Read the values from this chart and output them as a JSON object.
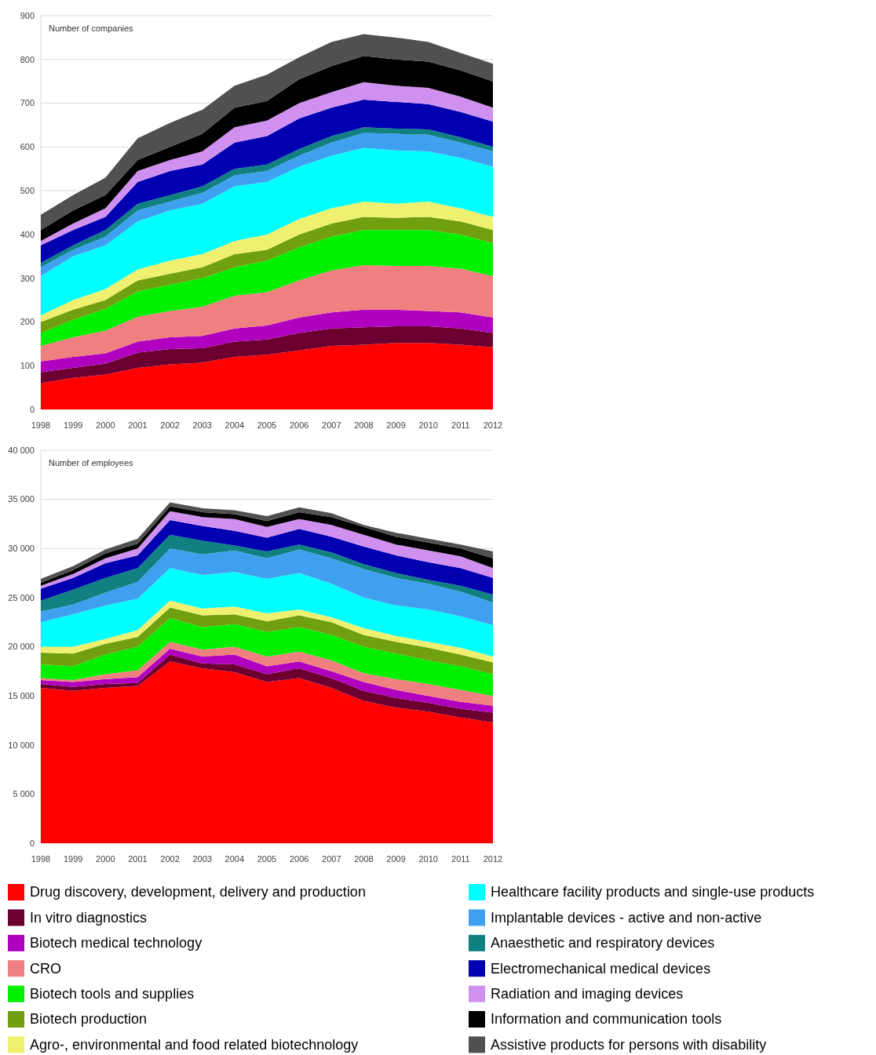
{
  "chart_data": [
    {
      "type": "area",
      "title": "Number of companies",
      "stacked": true,
      "grid": "y",
      "legend": "bottom",
      "categories": [
        "1998",
        "1999",
        "2000",
        "2001",
        "2002",
        "2003",
        "2004",
        "2005",
        "2006",
        "2007",
        "2008",
        "2009",
        "2010",
        "2011",
        "2012"
      ],
      "ylim": [
        0,
        900
      ],
      "yticks": [
        0,
        100,
        200,
        300,
        400,
        500,
        600,
        700,
        800,
        900
      ],
      "series": [
        {
          "name": "Drug discovery, development, delivery and production",
          "color": "#ff0000",
          "values": [
            60,
            72,
            80,
            95,
            103,
            107,
            120,
            125,
            135,
            145,
            148,
            152,
            152,
            148,
            142
          ]
        },
        {
          "name": "In vitro diagnostics",
          "color": "#6b0030",
          "values": [
            25,
            23,
            25,
            35,
            35,
            33,
            35,
            35,
            40,
            40,
            40,
            38,
            38,
            37,
            33
          ]
        },
        {
          "name": "Biotech medical technology",
          "color": "#b000c0",
          "values": [
            25,
            25,
            23,
            25,
            27,
            28,
            30,
            32,
            35,
            37,
            40,
            38,
            35,
            37,
            35
          ]
        },
        {
          "name": "CRO",
          "color": "#f08080",
          "values": [
            35,
            45,
            52,
            57,
            60,
            67,
            75,
            76,
            85,
            96,
            102,
            100,
            103,
            100,
            95
          ]
        },
        {
          "name": "Biotech tools and supplies",
          "color": "#00f000",
          "values": [
            30,
            40,
            50,
            58,
            60,
            65,
            65,
            72,
            75,
            77,
            80,
            82,
            82,
            78,
            75
          ]
        },
        {
          "name": "Biotech production",
          "color": "#70a010",
          "values": [
            25,
            23,
            20,
            25,
            25,
            25,
            30,
            25,
            30,
            30,
            30,
            28,
            30,
            30,
            30
          ]
        },
        {
          "name": "Agro-, environmental and food related biotechnology",
          "color": "#f0f070",
          "values": [
            15,
            22,
            25,
            25,
            30,
            30,
            30,
            35,
            35,
            35,
            35,
            32,
            35,
            30,
            30
          ]
        },
        {
          "name": "Healthcare facility products and single-use products",
          "color": "#00ffff",
          "values": [
            90,
            100,
            100,
            110,
            115,
            115,
            125,
            120,
            120,
            120,
            123,
            122,
            115,
            115,
            115
          ]
        },
        {
          "name": "Implantable devices - active and non-active",
          "color": "#40a0f0",
          "values": [
            20,
            15,
            20,
            25,
            20,
            25,
            25,
            25,
            25,
            30,
            34,
            38,
            38,
            35,
            35
          ]
        },
        {
          "name": "Anaesthetic and respiratory devices",
          "color": "#108080",
          "values": [
            10,
            10,
            15,
            15,
            15,
            15,
            15,
            15,
            15,
            15,
            13,
            12,
            12,
            12,
            10
          ]
        },
        {
          "name": "Electromechanical medical devices",
          "color": "#0000b0",
          "values": [
            40,
            35,
            30,
            50,
            55,
            50,
            60,
            65,
            70,
            65,
            63,
            61,
            58,
            58,
            58
          ]
        },
        {
          "name": "Radiation and imaging devices",
          "color": "#d090f0",
          "values": [
            10,
            15,
            20,
            25,
            25,
            30,
            35,
            35,
            35,
            35,
            40,
            37,
            37,
            35,
            32
          ]
        },
        {
          "name": "Information and communication tools",
          "color": "#000000",
          "values": [
            25,
            30,
            30,
            25,
            30,
            40,
            45,
            45,
            55,
            60,
            60,
            60,
            60,
            60,
            60
          ]
        },
        {
          "name": "Assistive products for persons with disability",
          "color": "#505050",
          "values": [
            35,
            35,
            40,
            50,
            55,
            55,
            50,
            60,
            50,
            55,
            50,
            50,
            45,
            40,
            40
          ]
        }
      ]
    },
    {
      "type": "area",
      "title": "Number of employees",
      "stacked": true,
      "grid": "y",
      "legend": "bottom",
      "categories": [
        "1998",
        "1999",
        "2000",
        "2001",
        "2002",
        "2003",
        "2004",
        "2005",
        "2006",
        "2007",
        "2008",
        "2009",
        "2010",
        "2011",
        "2012"
      ],
      "ylim": [
        0,
        40000
      ],
      "yticks": [
        0,
        {
          "value": 5000,
          "label": "5 000"
        },
        {
          "value": 10000,
          "label": "10 000"
        },
        {
          "value": 15000,
          "label": "15 000"
        },
        {
          "value": 20000,
          "label": "20 000"
        },
        {
          "value": 25000,
          "label": "25 000"
        },
        {
          "value": 30000,
          "label": "30 000"
        },
        {
          "value": 35000,
          "label": "35 000"
        },
        {
          "value": 40000,
          "label": "40 000"
        }
      ],
      "series": [
        {
          "color": "#ff0000",
          "values": [
            15800,
            15500,
            15800,
            16000,
            18500,
            17800,
            17400,
            16400,
            16800,
            15800,
            14500,
            13800,
            13400,
            12800,
            12300
          ]
        },
        {
          "color": "#6b0030",
          "values": [
            400,
            400,
            400,
            300,
            700,
            500,
            800,
            800,
            1000,
            1000,
            1000,
            1000,
            900,
            900,
            1000
          ]
        },
        {
          "color": "#b000c0",
          "values": [
            400,
            500,
            500,
            600,
            600,
            700,
            1000,
            800,
            700,
            700,
            900,
            800,
            700,
            700,
            700
          ]
        },
        {
          "color": "#f08080",
          "values": [
            200,
            200,
            500,
            700,
            700,
            700,
            800,
            1000,
            1000,
            1100,
            900,
            1100,
            1200,
            1200,
            1000
          ]
        },
        {
          "color": "#00f000",
          "values": [
            1400,
            1400,
            2000,
            2400,
            2400,
            2300,
            2300,
            2500,
            2500,
            2600,
            2700,
            2600,
            2400,
            2400,
            2200
          ]
        },
        {
          "color": "#70a010",
          "values": [
            1200,
            1300,
            1100,
            1000,
            1100,
            1200,
            1000,
            1100,
            1200,
            1300,
            1200,
            1200,
            1300,
            1200,
            1200
          ]
        },
        {
          "color": "#f0f070",
          "values": [
            600,
            700,
            500,
            700,
            700,
            700,
            800,
            800,
            600,
            500,
            700,
            600,
            600,
            700,
            600
          ]
        },
        {
          "color": "#00ffff",
          "values": [
            2500,
            3300,
            3400,
            3200,
            3300,
            3400,
            3500,
            3500,
            3700,
            3400,
            3100,
            3100,
            3300,
            3200,
            3200
          ]
        },
        {
          "color": "#40a0f0",
          "values": [
            1100,
            1000,
            1300,
            1700,
            2000,
            2100,
            2200,
            2100,
            2400,
            2600,
            2900,
            2800,
            2600,
            2500,
            2300
          ]
        },
        {
          "color": "#108080",
          "values": [
            1100,
            1500,
            1500,
            1400,
            1400,
            1400,
            500,
            700,
            500,
            600,
            500,
            500,
            400,
            600,
            800
          ]
        },
        {
          "color": "#0000b0",
          "values": [
            1200,
            1200,
            1500,
            1300,
            1500,
            1500,
            1500,
            1400,
            1600,
            1600,
            1800,
            1800,
            1800,
            1800,
            1700
          ]
        },
        {
          "color": "#d090f0",
          "values": [
            300,
            400,
            500,
            700,
            900,
            900,
            1200,
            1100,
            1000,
            1200,
            1200,
            1100,
            1200,
            1200,
            1000
          ]
        },
        {
          "color": "#000000",
          "values": [
            300,
            400,
            500,
            500,
            500,
            500,
            500,
            600,
            700,
            800,
            800,
            800,
            800,
            800,
            1000
          ]
        },
        {
          "color": "#505050",
          "values": [
            400,
            400,
            400,
            500,
            400,
            400,
            400,
            500,
            500,
            400,
            200,
            400,
            400,
            400,
            700
          ]
        }
      ]
    }
  ]
}
